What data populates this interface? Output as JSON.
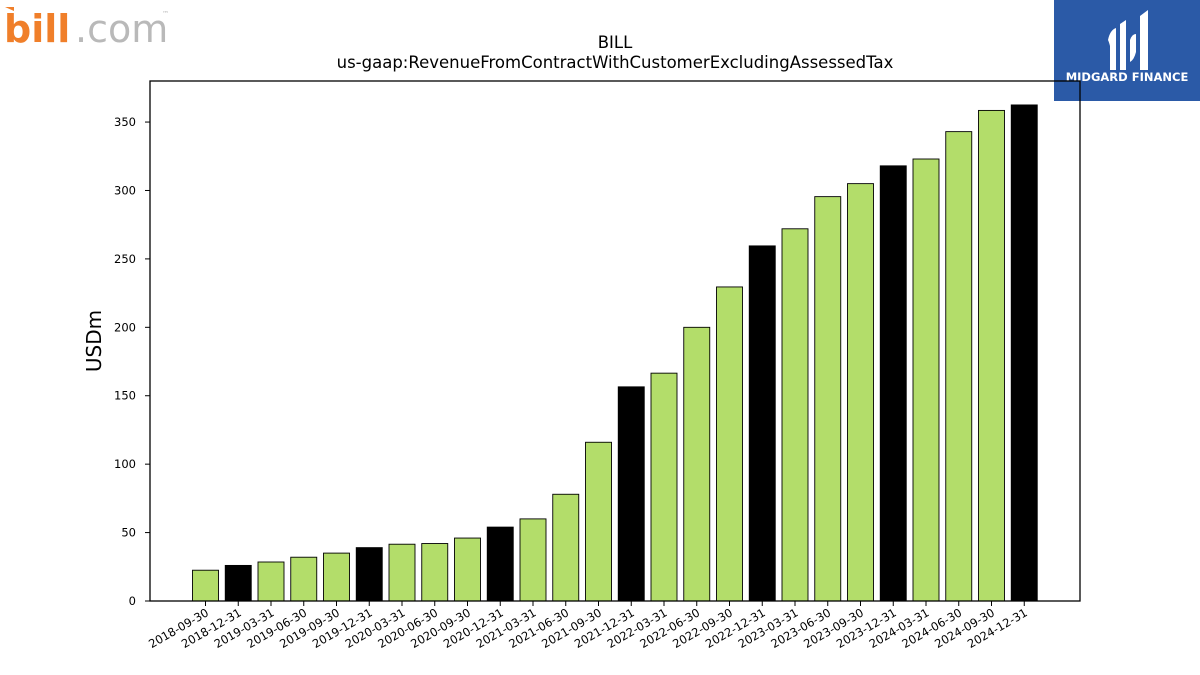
{
  "logos": {
    "left": {
      "text_bill": "bill",
      "text_com": ".com",
      "trademark": "™"
    },
    "right": {
      "text": "MIDGARD FINANCE"
    }
  },
  "colors": {
    "quarter_bar": "#b3dd6a",
    "year_end_bar": "#000000",
    "midgard_bg": "#2b5aa7",
    "bill_orange": "#f07f2a",
    "bill_gray": "#b9b9b9"
  },
  "chart_data": {
    "type": "bar",
    "title": "BILL",
    "subtitle": "us-gaap:RevenueFromContractWithCustomerExcludingAssessedTax",
    "xlabel": "",
    "ylabel": "USDm",
    "ylim": [
      0,
      380
    ],
    "yticks": [
      0,
      50,
      100,
      150,
      200,
      250,
      300,
      350
    ],
    "grid": false,
    "categories": [
      "2018-09-30",
      "2018-12-31",
      "2019-03-31",
      "2019-06-30",
      "2019-09-30",
      "2019-12-31",
      "2020-03-31",
      "2020-06-30",
      "2020-09-30",
      "2020-12-31",
      "2021-03-31",
      "2021-06-30",
      "2021-09-30",
      "2021-12-31",
      "2022-03-31",
      "2022-06-30",
      "2022-09-30",
      "2022-12-31",
      "2023-03-31",
      "2023-06-30",
      "2023-09-30",
      "2023-12-31",
      "2024-03-31",
      "2024-06-30",
      "2024-09-30",
      "2024-12-31"
    ],
    "values": [
      22.5,
      26,
      28.5,
      32,
      35,
      39,
      41.5,
      42,
      46,
      54,
      60,
      78,
      116,
      156.5,
      166.5,
      200,
      229.5,
      259.5,
      272,
      295.5,
      305,
      318,
      323,
      343,
      358.5,
      362.5
    ],
    "year_end": [
      false,
      true,
      false,
      false,
      false,
      true,
      false,
      false,
      false,
      true,
      false,
      false,
      false,
      true,
      false,
      false,
      false,
      true,
      false,
      false,
      false,
      true,
      false,
      false,
      false,
      true
    ]
  }
}
